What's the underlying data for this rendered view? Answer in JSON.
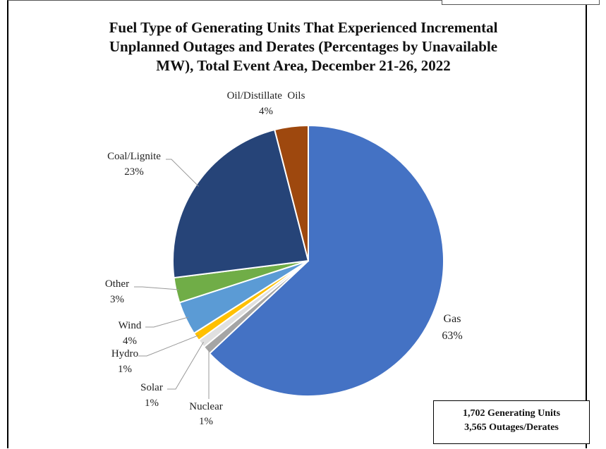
{
  "chart_data": {
    "type": "pie",
    "title_lines": [
      "Fuel Type of Generating Units That Experienced Incremental",
      "Unplanned Outages and Derates (Percentages by Unavailable",
      "MW), Total Event Area, December 21-26, 2022"
    ],
    "slices": [
      {
        "name": "Gas",
        "value": 63,
        "label": "63%",
        "color": "#4472C4"
      },
      {
        "name": "Nuclear",
        "value": 1,
        "label": "1%",
        "color": "#A5A5A5"
      },
      {
        "name": "Solar",
        "value": 1,
        "label": "1%",
        "color": "#E0E0E0"
      },
      {
        "name": "Hydro",
        "value": 1,
        "label": "1%",
        "color": "#FFC000"
      },
      {
        "name": "Wind",
        "value": 4,
        "label": "4%",
        "color": "#5B9BD5"
      },
      {
        "name": "Other",
        "value": 3,
        "label": "3%",
        "color": "#70AD47"
      },
      {
        "name": "Coal/Lignite",
        "value": 23,
        "label": "23%",
        "color": "#264478"
      },
      {
        "name": "Oil/Distillate  Oils",
        "value": 4,
        "label": "4%",
        "color": "#9E480E"
      }
    ]
  },
  "summary_box": {
    "line1": "1,702 Generating Units",
    "line2": "3,565 Outages/Derates"
  }
}
